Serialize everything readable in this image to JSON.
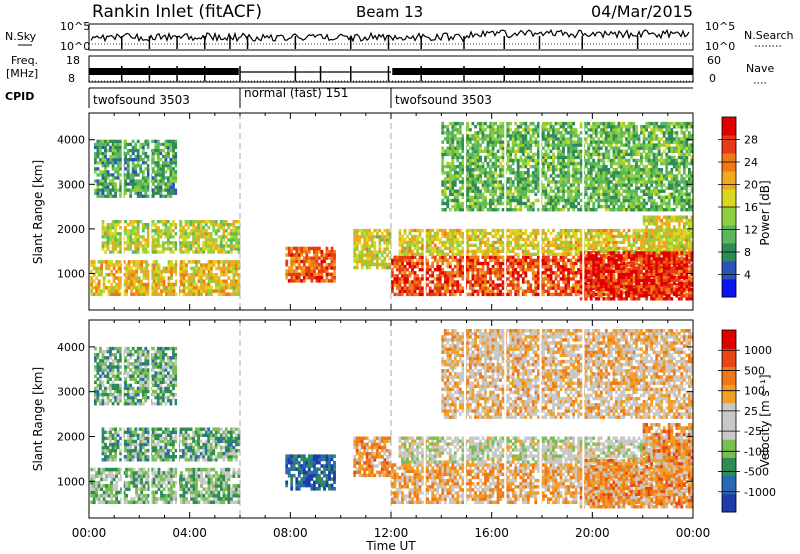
{
  "header": {
    "station": "Rankin Inlet (fitACF)",
    "beam": "Beam 13",
    "date": "04/Mar/2015"
  },
  "panels": {
    "nsky_label": "N.Sky",
    "nsearch_label": "N.Search",
    "freq_label": "Freq.",
    "freq_unit": "[MHz]",
    "nave_label": "Nave",
    "cpid_label": "CPID",
    "nsky_ticks": [
      "10^5",
      "10^0"
    ],
    "nsearch_ticks": [
      "10^5",
      "10^0"
    ],
    "freq_ticks": [
      "18",
      "8"
    ],
    "nave_ticks": [
      "60",
      "0"
    ]
  },
  "cpid": [
    {
      "label": "twofsound 3503",
      "start": 0,
      "end": 6
    },
    {
      "label": "normal (fast) 151",
      "start": 6,
      "end": 12
    },
    {
      "label": "twofsound 3503",
      "start": 12,
      "end": 24
    }
  ],
  "axes": {
    "xlabel": "Time UT",
    "ylabel": "Slant Range [km]",
    "x_ticks": [
      "00:00",
      "04:00",
      "08:00",
      "12:00",
      "16:00",
      "20:00",
      "00:00"
    ],
    "y_ticks": [
      "1000",
      "2000",
      "3000",
      "4000"
    ],
    "power_label": "Power [dB]",
    "velocity_label": "Velocity [m s⁻¹]"
  },
  "chart_data": [
    {
      "type": "heatmap",
      "title": "",
      "xlabel": "",
      "ylabel": "Slant Range [km]",
      "xlim": [
        0,
        24
      ],
      "ylim": [
        180,
        4600
      ],
      "y_ticks": [
        1000,
        2000,
        3000,
        4000
      ],
      "colorbar": {
        "label": "Power [dB]",
        "range": [
          0,
          32
        ],
        "ticks": [
          4,
          8,
          12,
          16,
          20,
          24,
          28
        ],
        "colors": [
          "#0a14f0",
          "#2b52b8",
          "#2e8b57",
          "#58b85a",
          "#8fcf3f",
          "#d8d820",
          "#f0a81e",
          "#f07818",
          "#e83a14",
          "#e00000"
        ]
      },
      "regions": [
        {
          "t0": 0.05,
          "t1": 6.0,
          "r0": 500,
          "r1": 1300,
          "level": 0.62
        },
        {
          "t0": 0.5,
          "t1": 6.0,
          "r0": 1450,
          "r1": 2200,
          "level": 0.5
        },
        {
          "t0": 0.2,
          "t1": 3.5,
          "r0": 2700,
          "r1": 4000,
          "level": 0.3
        },
        {
          "t0": 7.8,
          "t1": 9.8,
          "r0": 800,
          "r1": 1600,
          "level": 0.82
        },
        {
          "t0": 10.5,
          "t1": 12.0,
          "r0": 1100,
          "r1": 2000,
          "level": 0.55
        },
        {
          "t0": 12.0,
          "t1": 24.0,
          "r0": 500,
          "r1": 1400,
          "level": 0.86
        },
        {
          "t0": 12.3,
          "t1": 24.0,
          "r0": 1400,
          "r1": 2000,
          "level": 0.58
        },
        {
          "t0": 19.5,
          "t1": 24.0,
          "r0": 400,
          "r1": 1500,
          "level": 0.95
        },
        {
          "t0": 22.0,
          "t1": 24.0,
          "r0": 1500,
          "r1": 2300,
          "level": 0.55
        },
        {
          "t0": 14.0,
          "t1": 24.0,
          "r0": 2400,
          "r1": 4400,
          "level": 0.35
        }
      ]
    },
    {
      "type": "heatmap",
      "title": "",
      "xlabel": "Time UT",
      "ylabel": "Slant Range [km]",
      "xlim": [
        0,
        24
      ],
      "ylim": [
        180,
        4600
      ],
      "y_ticks": [
        1000,
        2000,
        3000,
        4000
      ],
      "colorbar": {
        "label": "Velocity [m s⁻¹]",
        "ticks": [
          1000,
          500,
          100,
          25,
          -25,
          -100,
          -500,
          -1000
        ],
        "colors": [
          "#1e3ca8",
          "#2868b4",
          "#2e8b57",
          "#78be50",
          "#c8c8c8",
          "#c8c8c8",
          "#f0a028",
          "#f07818",
          "#e84414",
          "#e00000"
        ]
      },
      "regions": [
        {
          "t0": 0.05,
          "t1": 6.0,
          "r0": 500,
          "r1": 1300,
          "level": 0.35
        },
        {
          "t0": 0.5,
          "t1": 6.0,
          "r0": 1450,
          "r1": 2200,
          "level": 0.3
        },
        {
          "t0": 0.2,
          "t1": 3.5,
          "r0": 2700,
          "r1": 4000,
          "level": 0.3
        },
        {
          "t0": 7.8,
          "t1": 9.8,
          "r0": 800,
          "r1": 1600,
          "level": 0.1
        },
        {
          "t0": 10.5,
          "t1": 12.0,
          "r0": 1100,
          "r1": 2000,
          "level": 0.7
        },
        {
          "t0": 12.0,
          "t1": 24.0,
          "r0": 500,
          "r1": 1400,
          "level": 0.65
        },
        {
          "t0": 12.3,
          "t1": 24.0,
          "r0": 1400,
          "r1": 2000,
          "level": 0.48
        },
        {
          "t0": 19.5,
          "t1": 24.0,
          "r0": 400,
          "r1": 1500,
          "level": 0.7
        },
        {
          "t0": 22.0,
          "t1": 24.0,
          "r0": 1500,
          "r1": 2300,
          "level": 0.72
        },
        {
          "t0": 14.0,
          "t1": 24.0,
          "r0": 2400,
          "r1": 4400,
          "level": 0.6
        }
      ]
    }
  ]
}
